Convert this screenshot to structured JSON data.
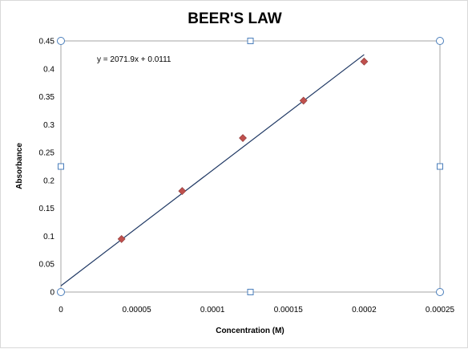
{
  "chart_data": {
    "type": "scatter",
    "title": "BEER'S LAW",
    "xlabel": "Concentration (M)",
    "ylabel": "Absorbance",
    "xlim": [
      0,
      0.00025
    ],
    "ylim": [
      0,
      0.45
    ],
    "x_ticks": [
      "0",
      "0.00005",
      "0.0001",
      "0.00015",
      "0.0002",
      "0.00025"
    ],
    "y_ticks": [
      "0",
      "0.05",
      "0.1",
      "0.15",
      "0.2",
      "0.25",
      "0.3",
      "0.35",
      "0.4",
      "0.45"
    ],
    "grid": false,
    "legend": "none",
    "series": [
      {
        "points": [
          {
            "x": 4e-05,
            "y": 0.095
          },
          {
            "x": 8e-05,
            "y": 0.181
          },
          {
            "x": 0.00012,
            "y": 0.276
          },
          {
            "x": 0.00016,
            "y": 0.343
          },
          {
            "x": 0.0002,
            "y": 0.413
          }
        ],
        "marker": "diamond",
        "color": "#c0504d"
      }
    ],
    "trendline": {
      "slope": 2071.9,
      "intercept": 0.0111,
      "x_range": [
        0,
        0.0002
      ],
      "color": "#1f3864",
      "equation": "y = 2071.9x + 0.0111"
    },
    "selection_handle_color": "#4a7ebb"
  }
}
